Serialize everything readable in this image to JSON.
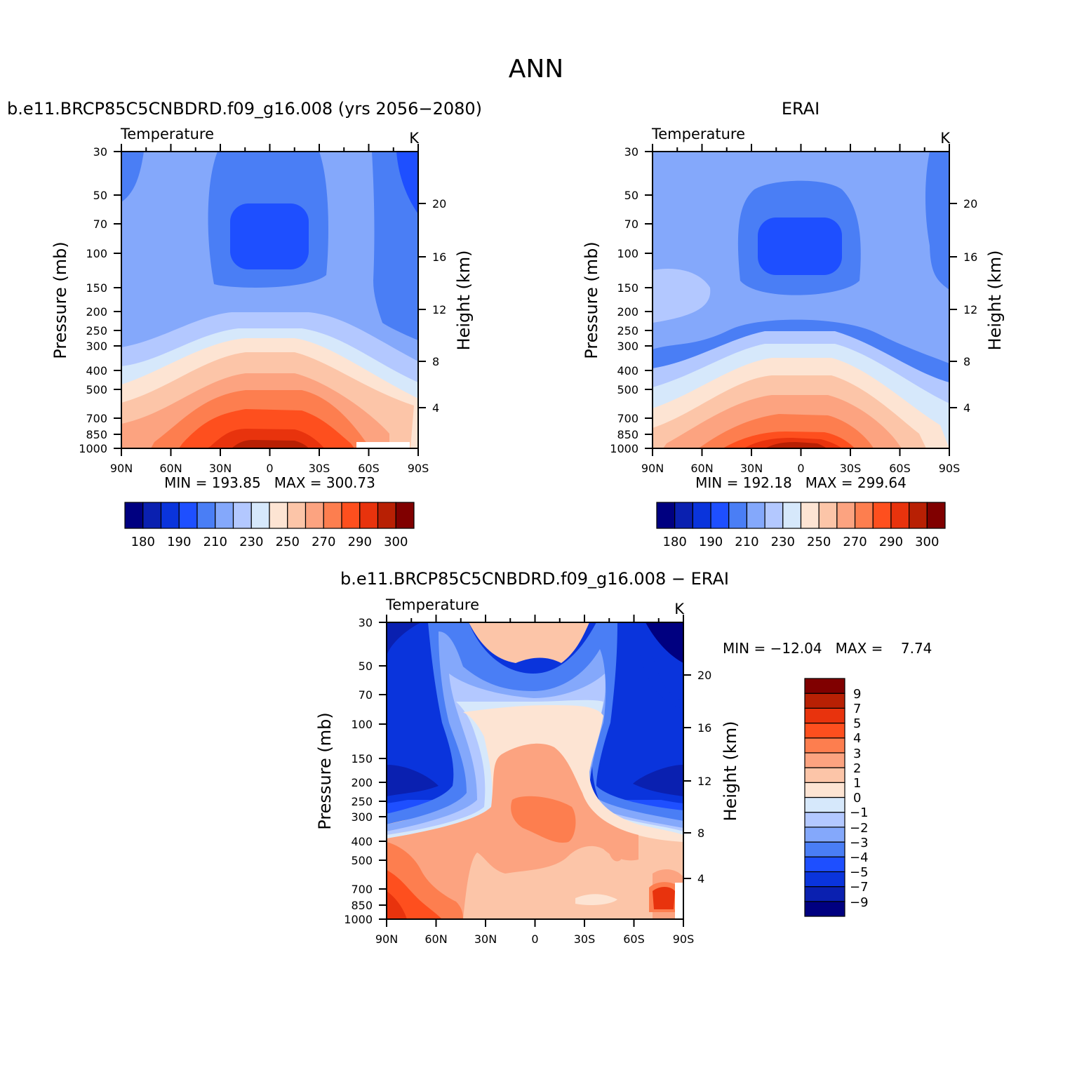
{
  "figure": {
    "title": "ANN"
  },
  "colormaps": {
    "abs": [
      "#000080",
      "#0a20b0",
      "#0a34dc",
      "#1e4fff",
      "#4a7ef5",
      "#84a8fb",
      "#b3c8ff",
      "#d6e8fb",
      "#fde4d3",
      "#fcc5a8",
      "#fca380",
      "#fd7e4f",
      "#fe4f1e",
      "#e8330d",
      "#b82004",
      "#800000"
    ],
    "diff": [
      "#000080",
      "#0a20b0",
      "#0a34dc",
      "#1e4fff",
      "#4a7ef5",
      "#84a8fb",
      "#b3c8ff",
      "#d6e8fb",
      "#fde4d3",
      "#fcc5a8",
      "#fca380",
      "#fd7e4f",
      "#fe4f1e",
      "#e8330d",
      "#b82004",
      "#800000"
    ]
  },
  "chart_data": [
    {
      "id": "model",
      "type": "heatmap",
      "title": "b.e11.BRCP85C5CNBDRD.f09_g16.008 (yrs 2056−2080)",
      "left_label": "Temperature",
      "units": "K",
      "ylabel": "Pressure (mb)",
      "y2label": "Height (km)",
      "x_ticks": [
        "90N",
        "60N",
        "30N",
        "0",
        "30S",
        "60S",
        "90S"
      ],
      "x_tick_values": [
        90,
        60,
        30,
        0,
        -30,
        -60,
        -90
      ],
      "p_ticks": [
        30,
        50,
        70,
        100,
        150,
        200,
        250,
        300,
        400,
        500,
        700,
        850,
        1000
      ],
      "h_ticks": [
        20,
        16,
        12,
        8,
        4
      ],
      "ylim": [
        1000,
        30
      ],
      "xlim": [
        90,
        -90
      ],
      "min_text": "MIN = 193.85   MAX = 300.73",
      "colorbar": {
        "orientation": "horizontal",
        "labels": [
          "180",
          "190",
          "210",
          "230",
          "250",
          "270",
          "290",
          "300"
        ]
      }
    },
    {
      "id": "obs",
      "type": "heatmap",
      "title": "ERAI",
      "left_label": "Temperature",
      "units": "K",
      "ylabel": "Pressure (mb)",
      "y2label": "Height (km)",
      "x_ticks": [
        "90N",
        "60N",
        "30N",
        "0",
        "30S",
        "60S",
        "90S"
      ],
      "x_tick_values": [
        90,
        60,
        30,
        0,
        -30,
        -60,
        -90
      ],
      "p_ticks": [
        30,
        50,
        70,
        100,
        150,
        200,
        250,
        300,
        400,
        500,
        700,
        850,
        1000
      ],
      "h_ticks": [
        20,
        16,
        12,
        8,
        4
      ],
      "ylim": [
        1000,
        30
      ],
      "xlim": [
        90,
        -90
      ],
      "min_text": "MIN = 192.18   MAX = 299.64",
      "colorbar": {
        "orientation": "horizontal",
        "labels": [
          "180",
          "190",
          "210",
          "230",
          "250",
          "270",
          "290",
          "300"
        ]
      }
    },
    {
      "id": "diff",
      "type": "heatmap",
      "title": "b.e11.BRCP85C5CNBDRD.f09_g16.008 − ERAI",
      "left_label": "Temperature",
      "units": "K",
      "ylabel": "Pressure (mb)",
      "y2label": "Height (km)",
      "x_ticks": [
        "90N",
        "60N",
        "30N",
        "0",
        "30S",
        "60S",
        "90S"
      ],
      "x_tick_values": [
        90,
        60,
        30,
        0,
        -30,
        -60,
        -90
      ],
      "p_ticks": [
        30,
        50,
        70,
        100,
        150,
        200,
        250,
        300,
        400,
        500,
        700,
        850,
        1000
      ],
      "h_ticks": [
        20,
        16,
        12,
        8,
        4
      ],
      "ylim": [
        1000,
        30
      ],
      "xlim": [
        90,
        -90
      ],
      "min_text": "MIN = −12.04   MAX =    7.74",
      "colorbar": {
        "orientation": "vertical",
        "labels": [
          "9",
          "7",
          "5",
          "4",
          "3",
          "2",
          "1",
          "0",
          "−1",
          "−2",
          "−3",
          "−4",
          "−5",
          "−7",
          "−9"
        ]
      }
    }
  ]
}
